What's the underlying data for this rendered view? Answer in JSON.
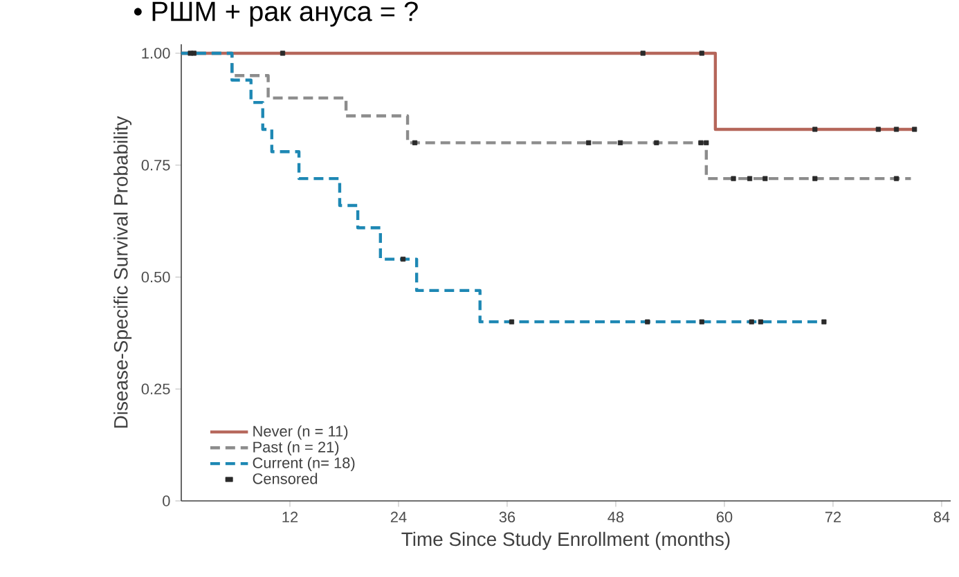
{
  "chart_data": {
    "type": "step",
    "title": "• РШМ + рак ануса = ?",
    "xlabel": "Time Since Study Enrollment (months)",
    "ylabel": "Disease-Specific Survival Probability",
    "xlim": [
      0,
      85
    ],
    "ylim": [
      0,
      1.02
    ],
    "xticks": [
      12,
      24,
      36,
      48,
      60,
      72,
      84
    ],
    "yticks": [
      {
        "value": 0,
        "label": "0"
      },
      {
        "value": 0.25,
        "label": "0.25"
      },
      {
        "value": 0.5,
        "label": "0.50"
      },
      {
        "value": 0.75,
        "label": "0.75"
      },
      {
        "value": 1.0,
        "label": "1.00"
      }
    ],
    "legend": "bottom left",
    "series": [
      {
        "name": "Never (n = 11)",
        "color": "#b5665a",
        "line_style": "solid",
        "x": [
          0,
          59,
          81
        ],
        "values": [
          1.0,
          0.83,
          0.83
        ]
      },
      {
        "name": "Past (n = 21)",
        "color": "#8c8c8c",
        "line_style": "dashed",
        "x": [
          0,
          5.6,
          9.6,
          18.2,
          25,
          58,
          80.6
        ],
        "values": [
          1.0,
          0.95,
          0.9,
          0.86,
          0.8,
          0.72,
          0.72
        ]
      },
      {
        "name": "Current (n= 18)",
        "color": "#1e88b4",
        "line_style": "dashed",
        "x": [
          0,
          5.6,
          7.7,
          9,
          10,
          13,
          17.5,
          19.5,
          22,
          26,
          33,
          71
        ],
        "values": [
          1.0,
          0.94,
          0.89,
          0.83,
          0.78,
          0.72,
          0.66,
          0.61,
          0.54,
          0.47,
          0.4,
          0.4
        ]
      },
      {
        "name": "Censored",
        "type": "scatter",
        "color": "#2a2a2a",
        "marker": "square",
        "x": [
          1.4,
          11.2,
          51,
          57.5,
          70,
          77,
          79,
          81,
          25.8,
          45,
          48.5,
          52.5,
          57.4,
          58,
          61,
          62.8,
          64.5,
          70,
          79,
          1,
          24.5,
          36.5,
          51.5,
          57.5,
          63,
          64,
          71
        ],
        "values": [
          1.0,
          1.0,
          1.0,
          1.0,
          0.83,
          0.83,
          0.83,
          0.83,
          0.8,
          0.8,
          0.8,
          0.8,
          0.8,
          0.8,
          0.72,
          0.72,
          0.72,
          0.72,
          0.72,
          1.0,
          0.54,
          0.4,
          0.4,
          0.4,
          0.4,
          0.4,
          0.4
        ]
      }
    ]
  }
}
